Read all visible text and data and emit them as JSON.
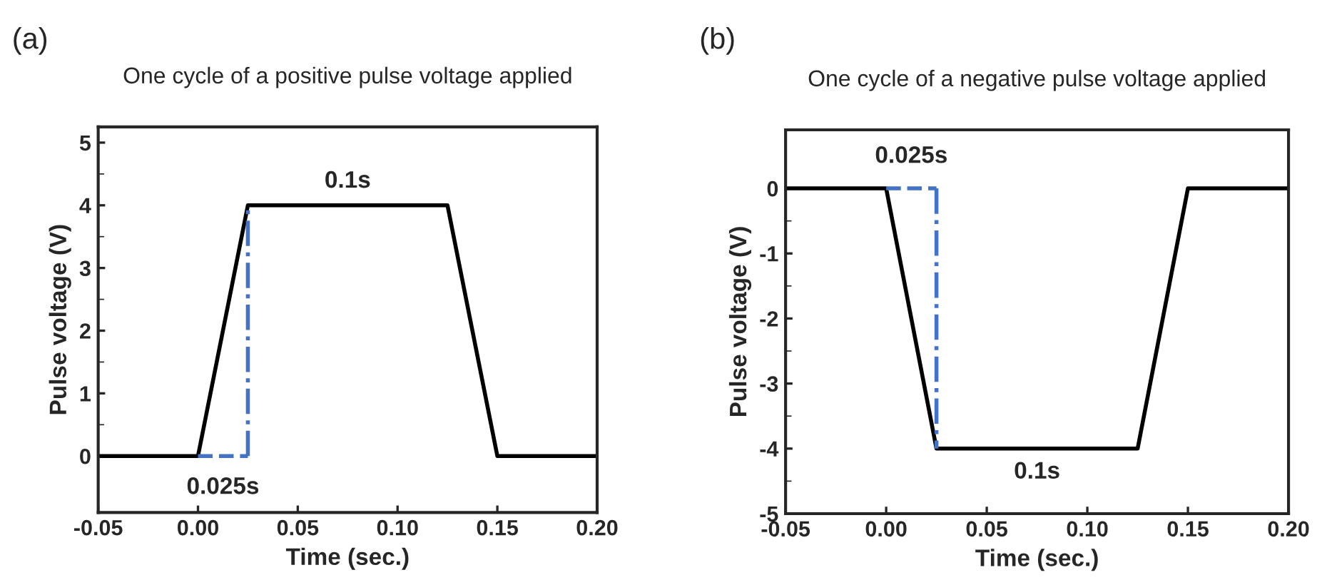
{
  "chart_data": [
    {
      "type": "line",
      "title": "One cycle of a positive pulse voltage applied",
      "xlabel": "Time (sec.)",
      "ylabel": "Pulse voltage (V)",
      "x": [
        -0.05,
        0,
        0.025,
        0.125,
        0.15,
        0.2
      ],
      "series": [
        {
          "color": "#000000",
          "values": [
            0,
            0,
            4,
            4,
            0,
            0
          ]
        }
      ],
      "xlim": [
        -0.05,
        0.2
      ],
      "xticks": [
        {
          "value": -0.05,
          "label": "-0.05"
        },
        {
          "value": 0,
          "label": "0.00"
        },
        {
          "value": 0.05,
          "label": "0.05"
        },
        {
          "value": 0.1,
          "label": "0.10"
        },
        {
          "value": 0.15,
          "label": "0.15"
        },
        {
          "value": 0.2,
          "label": "0.20"
        }
      ],
      "ylim": [
        -0.9,
        5.25
      ],
      "yticks": [
        0,
        1,
        2,
        3,
        4,
        5
      ],
      "marker": "none",
      "line_style": "solid",
      "grid": false,
      "legend": false,
      "annotations": [
        "(a)",
        "0.1s",
        "0.025s"
      ]
    },
    {
      "type": "line",
      "title": "One cycle of a negative pulse voltage applied",
      "xlabel": "Time (sec.)",
      "ylabel": "Pulse voltage (V)",
      "x": [
        -0.05,
        0,
        0.025,
        0.125,
        0.15,
        0.2
      ],
      "series": [
        {
          "color": "#000000",
          "values": [
            0,
            0,
            -4,
            -4,
            0,
            0
          ]
        }
      ],
      "xlim": [
        -0.05,
        0.2
      ],
      "xticks": [
        {
          "value": -0.05,
          "label": "-0.05"
        },
        {
          "value": 0,
          "label": "0.00"
        },
        {
          "value": 0.05,
          "label": "0.05"
        },
        {
          "value": 0.1,
          "label": "0.10"
        },
        {
          "value": 0.15,
          "label": "0.15"
        },
        {
          "value": 0.2,
          "label": "0.20"
        }
      ],
      "ylim": [
        -5,
        0.9
      ],
      "yticks": [
        -5,
        -4,
        -3,
        -2,
        -1,
        0
      ],
      "marker": "none",
      "line_style": "solid",
      "grid": false,
      "legend": false,
      "annotations": [
        "(b)",
        "0.1s",
        "0.025s"
      ]
    }
  ]
}
